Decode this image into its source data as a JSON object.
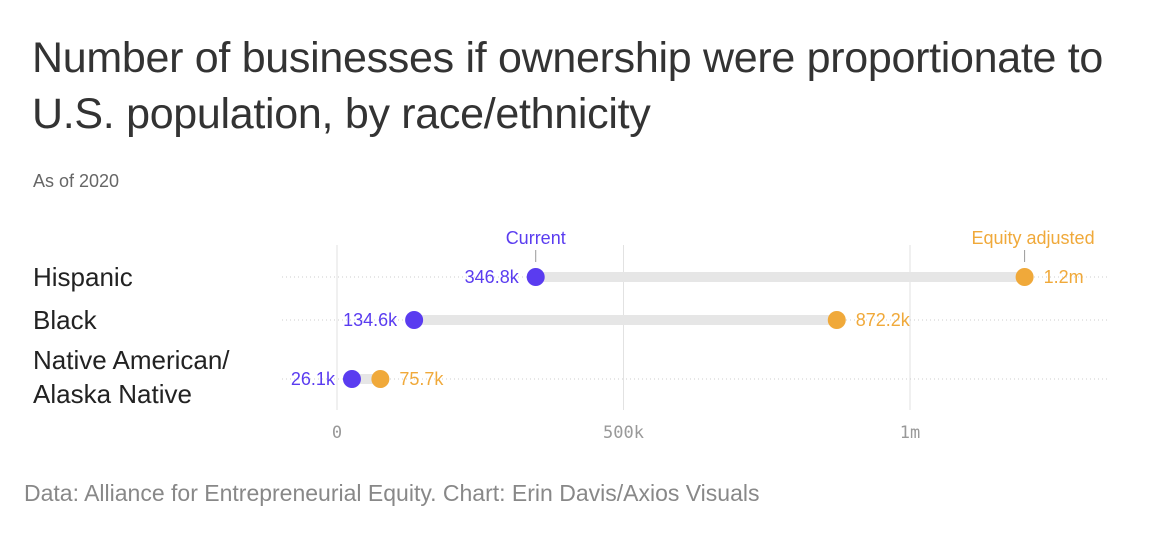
{
  "header": {
    "title": "Number of businesses if ownership were proportionate to U.S. population, by race/ethnicity",
    "subtitle": "As of 2020"
  },
  "footer": {
    "source": "Data: Alliance for Entrepreneurial Equity. Chart: Erin Davis/Axios Visuals"
  },
  "colors": {
    "current": "#5a3cf0",
    "equity": "#f0a93a",
    "bar_track": "#e6e6e6",
    "gridline": "#e2e2e2",
    "text": "#222222"
  },
  "chart_data": {
    "type": "dumbbell",
    "title": "Number of businesses if ownership were proportionate to U.S. population, by race/ethnicity",
    "subtitle": "As of 2020",
    "categories": [
      [
        "Hispanic"
      ],
      [
        "Black"
      ],
      [
        "Native American/",
        "Alaska Native"
      ]
    ],
    "series": [
      {
        "name": "Current",
        "values": [
          346800,
          134600,
          26100
        ],
        "labels": [
          "346.8k",
          "134.6k",
          "26.1k"
        ]
      },
      {
        "name": "Equity adjusted",
        "values": [
          1200000,
          872200,
          75700
        ],
        "labels": [
          "1.2m",
          "872.2k",
          "75.7k"
        ]
      }
    ],
    "x_ticks": [
      0,
      500000,
      1000000
    ],
    "x_tick_labels": [
      "0",
      "500k",
      "1m"
    ],
    "xlim": [
      0,
      1200000
    ],
    "grid": true,
    "legend": "above first row, labels placed over the Hispanic points"
  }
}
